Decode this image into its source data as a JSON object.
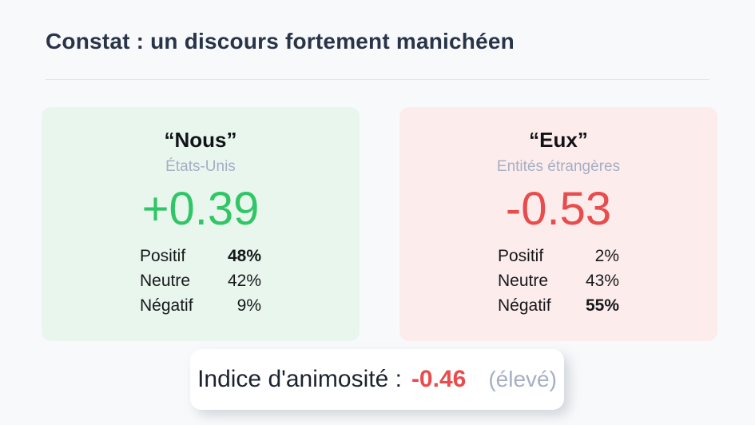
{
  "slide": {
    "background": "#f8f9fb",
    "title": "Constat : un discours fortement manichéen"
  },
  "cards": [
    {
      "heading": "“Nous”",
      "subheading": "États-Unis",
      "score": "+0.39",
      "score_color": "#31c665",
      "background": "#e8f6ee",
      "rows": [
        {
          "label": "Positif",
          "value": "48%"
        },
        {
          "label": "Neutre",
          "value": "42%"
        },
        {
          "label": "Négatif",
          "value": "9%"
        }
      ]
    },
    {
      "heading": "“Eux”",
      "subheading": "Entités étrangères",
      "score": "-0.53",
      "score_color": "#e84c4c",
      "background": "#fdecec",
      "rows": [
        {
          "label": "Positif",
          "value": "2%"
        },
        {
          "label": "Neutre",
          "value": "43%"
        },
        {
          "label": "Négatif",
          "value": "55%"
        }
      ]
    }
  ],
  "animosity": {
    "label": "Indice d'animosité :",
    "value": "-0.46",
    "value_color": "#e84c4c",
    "qualifier": "(élevé)"
  }
}
